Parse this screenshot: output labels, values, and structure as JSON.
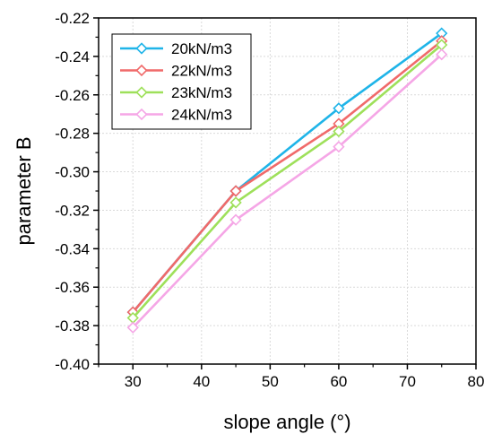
{
  "chart_data": {
    "type": "line",
    "xlabel": "slope angle (°)",
    "ylabel": "parameter B",
    "xlim": [
      25,
      80
    ],
    "ylim": [
      -0.4,
      -0.22
    ],
    "xticks": [
      30,
      40,
      50,
      60,
      70,
      80
    ],
    "xtick_labels": [
      "30",
      "40",
      "50",
      "60",
      "70",
      "80"
    ],
    "yticks": [
      -0.4,
      -0.38,
      -0.36,
      -0.34,
      -0.32,
      -0.3,
      -0.28,
      -0.26,
      -0.24,
      -0.22
    ],
    "ytick_labels": [
      "-0.40",
      "-0.38",
      "-0.36",
      "-0.34",
      "-0.32",
      "-0.30",
      "-0.28",
      "-0.26",
      "-0.24",
      "-0.22"
    ],
    "grid": true,
    "legend_position": "top-left",
    "x": [
      30,
      45,
      60,
      75
    ],
    "series": [
      {
        "name": "20kN/m3",
        "color": "#1FB4E8",
        "values": [
          -0.373,
          -0.31,
          -0.267,
          -0.228
        ]
      },
      {
        "name": "22kN/m3",
        "color": "#F06A6A",
        "values": [
          -0.373,
          -0.31,
          -0.275,
          -0.232
        ]
      },
      {
        "name": "23kN/m3",
        "color": "#9EE05A",
        "values": [
          -0.376,
          -0.316,
          -0.279,
          -0.234
        ]
      },
      {
        "name": "24kN/m3",
        "color": "#F5A6E6",
        "values": [
          -0.381,
          -0.325,
          -0.287,
          -0.239
        ]
      }
    ]
  }
}
